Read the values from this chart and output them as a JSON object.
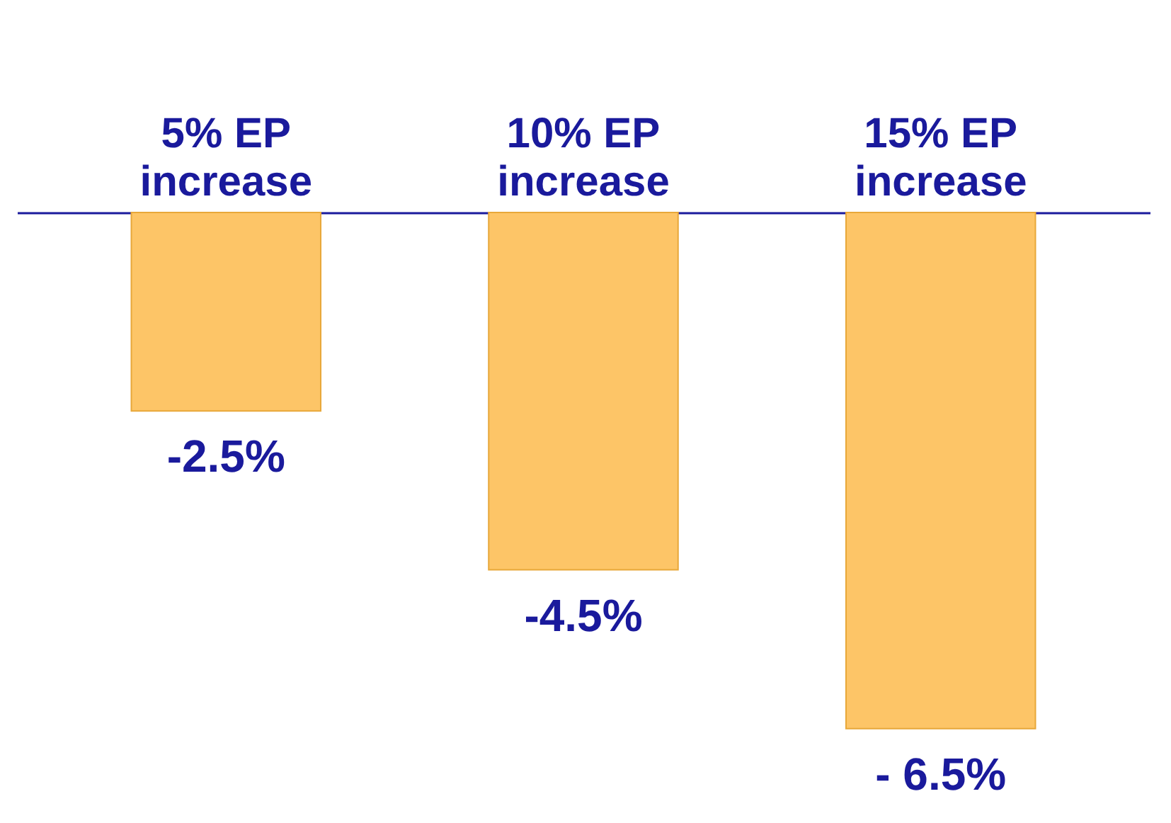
{
  "chart_data": {
    "type": "bar",
    "categories": [
      "5% EP increase",
      "10% EP increase",
      "15% EP increase"
    ],
    "values": [
      -2.5,
      -4.5,
      -6.5
    ],
    "value_labels": [
      "-2.5%",
      "-4.5%",
      "- 6.5%"
    ],
    "color": "#fdc567",
    "grid": false
  }
}
